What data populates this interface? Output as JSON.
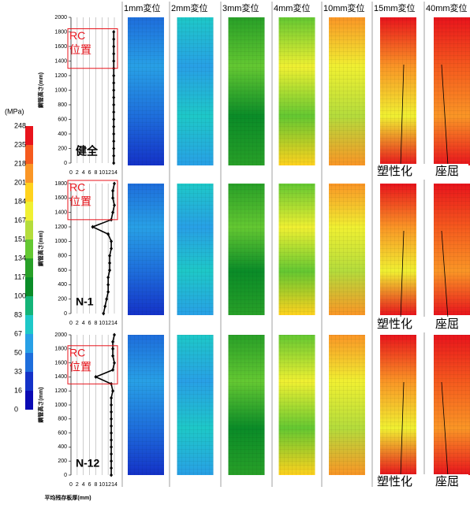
{
  "colorbar": {
    "unit": "(MPa)",
    "ticks": [
      248,
      235,
      218,
      201,
      184,
      167,
      151,
      134,
      117,
      100,
      83,
      67,
      50,
      33,
      16,
      0
    ],
    "colors": [
      "#e8141c",
      "#f55a1e",
      "#fa9626",
      "#ffd21e",
      "#f0f032",
      "#b4dc3c",
      "#64c832",
      "#28a028",
      "#0a8c28",
      "#14b478",
      "#1ec8c8",
      "#28a0e6",
      "#1e6edc",
      "#1432c8",
      "#0a0ab4"
    ]
  },
  "columns": [
    "1mm変位",
    "2mm変位",
    "3mm変位",
    "4mm変位",
    "10mm変位",
    "15mm変位",
    "40mm変位"
  ],
  "rows": [
    {
      "annotations": [
        "塑性化",
        "座屈"
      ]
    },
    {
      "annotations": [
        "塑性化",
        "座屈"
      ]
    },
    {
      "annotations": [
        "塑性化",
        "座屈"
      ]
    }
  ],
  "chart_data": [
    {
      "type": "line",
      "label": "健全",
      "rc_label": [
        "RC",
        "位置"
      ],
      "ylabel": "鋼管高さ(mm)",
      "ylim": [
        0,
        2000
      ],
      "yticks": [
        0,
        200,
        400,
        600,
        800,
        1000,
        1200,
        1400,
        1600,
        1800,
        2000
      ],
      "xlim": [
        0,
        14
      ],
      "xticks": [
        0,
        2,
        4,
        6,
        8,
        10,
        12,
        14
      ],
      "color": "#000000",
      "x": [
        13.8,
        13.8,
        13.8,
        13.8,
        13.8,
        13.8,
        13.8,
        13.8,
        13.8,
        13.8,
        13.8,
        13.8,
        13.8,
        13.8,
        13.8,
        13.8,
        13.8,
        13.8,
        13.8
      ],
      "values": [
        0,
        100,
        200,
        300,
        400,
        500,
        600,
        700,
        800,
        900,
        1000,
        1100,
        1200,
        1300,
        1400,
        1500,
        1600,
        1700,
        1800
      ]
    },
    {
      "type": "line",
      "label": "N-1",
      "rc_label": [
        "RC",
        "位置"
      ],
      "ylabel": "鋼管高さ(mm)",
      "ylim": [
        0,
        1800
      ],
      "yticks": [
        0,
        200,
        400,
        600,
        800,
        1000,
        1200,
        1400,
        1600,
        1800
      ],
      "xlim": [
        0,
        14
      ],
      "xticks": [
        0,
        2,
        4,
        6,
        8,
        10,
        12,
        14
      ],
      "color": "#000000",
      "x": [
        10.5,
        11,
        11.5,
        12,
        12,
        12,
        12.5,
        12.5,
        12.5,
        13,
        13,
        12,
        7,
        13,
        13.5,
        14,
        13.5,
        13.5,
        14
      ],
      "values": [
        0,
        100,
        200,
        300,
        400,
        500,
        600,
        700,
        800,
        900,
        1000,
        1100,
        1200,
        1300,
        1400,
        1500,
        1600,
        1700,
        1800
      ]
    },
    {
      "type": "line",
      "label": "N-12",
      "rc_label": [
        "RC",
        "位置"
      ],
      "ylabel": "鋼管高さ(mm)",
      "xlabel": "平均残存板厚(mm)",
      "ylim": [
        0,
        2000
      ],
      "yticks": [
        0,
        200,
        400,
        600,
        800,
        1000,
        1200,
        1400,
        1600,
        1800,
        2000
      ],
      "xlim": [
        0,
        14
      ],
      "xticks": [
        0,
        2,
        4,
        6,
        8,
        10,
        12,
        14
      ],
      "color": "#000000",
      "x": [
        13,
        13,
        13,
        13,
        13,
        13,
        13,
        13,
        13,
        13,
        13,
        13,
        13.5,
        13,
        8,
        13.5,
        14,
        13.5,
        13.5,
        13.5,
        14
      ],
      "values": [
        0,
        100,
        200,
        300,
        400,
        500,
        600,
        700,
        800,
        900,
        1000,
        1100,
        1200,
        1300,
        1400,
        1500,
        1600,
        1700,
        1800,
        1900,
        2000
      ]
    }
  ]
}
